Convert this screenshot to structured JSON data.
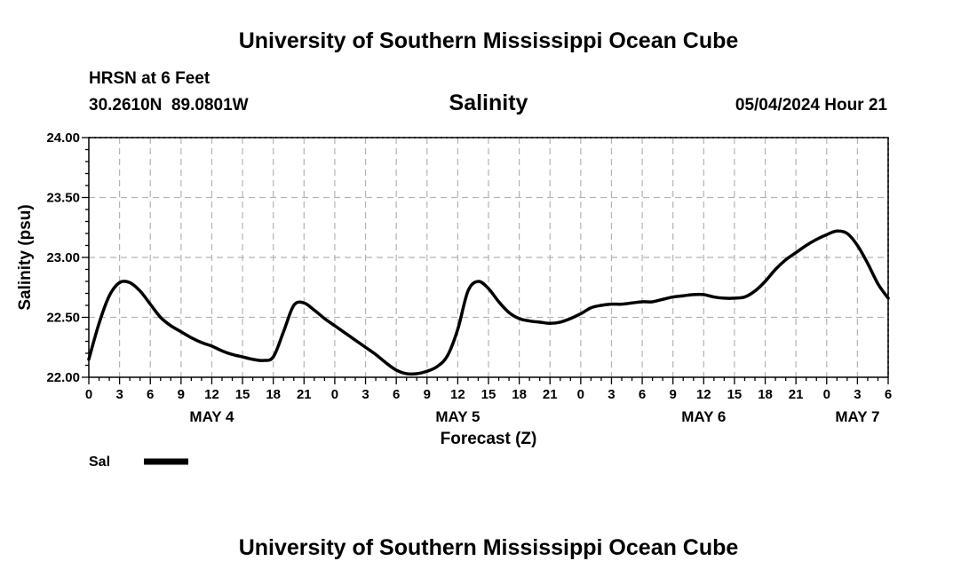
{
  "page": {
    "title_top": "University of Southern Mississippi Ocean Cube",
    "title_bottom": "University of Southern Mississippi Ocean Cube",
    "station": "HRSN at 6 Feet",
    "coords": "30.2610N  89.0801W",
    "timestamp": "05/04/2024 Hour 21"
  },
  "chart_data": {
    "type": "line",
    "title": "Salinity",
    "xlabel": "Forecast (Z)",
    "ylabel": "Salinity (psu)",
    "ylim": [
      22.0,
      24.0
    ],
    "yticks": [
      "24.00",
      "23.50",
      "23.00",
      "22.50",
      "22.00"
    ],
    "ytick_values": [
      24.0,
      23.5,
      23.0,
      22.5,
      22.0
    ],
    "xlim_hours": [
      0,
      78
    ],
    "xtick_labels": [
      "0",
      "3",
      "6",
      "9",
      "12",
      "15",
      "18",
      "21",
      "0",
      "3",
      "6",
      "9",
      "12",
      "15",
      "18",
      "21",
      "0",
      "3",
      "6",
      "9",
      "12",
      "15",
      "18",
      "21",
      "0",
      "3",
      "6"
    ],
    "day_labels": [
      {
        "label": "MAY 4",
        "hour": 12
      },
      {
        "label": "MAY 5",
        "hour": 36
      },
      {
        "label": "MAY 6",
        "hour": 60
      },
      {
        "label": "MAY 7",
        "hour": 75
      }
    ],
    "grid": true,
    "legend": {
      "label": "Sal",
      "placement": "bottom-left"
    },
    "series": [
      {
        "name": "Sal",
        "x_hours": [
          0,
          1,
          2,
          3,
          4,
          5,
          6,
          7,
          8,
          9,
          10,
          11,
          12,
          13,
          14,
          15,
          16,
          17,
          18,
          19,
          20,
          21,
          22,
          23,
          24,
          25,
          26,
          27,
          28,
          29,
          30,
          31,
          32,
          33,
          34,
          35,
          36,
          37,
          38,
          39,
          40,
          41,
          42,
          43,
          44,
          45,
          46,
          47,
          48,
          49,
          50,
          51,
          52,
          53,
          54,
          55,
          56,
          57,
          58,
          59,
          60,
          61,
          62,
          63,
          64,
          65,
          66,
          67,
          68,
          69,
          70,
          71,
          72,
          73,
          74,
          75,
          76,
          77,
          78
        ],
        "values": [
          22.15,
          22.45,
          22.68,
          22.79,
          22.79,
          22.72,
          22.61,
          22.5,
          22.43,
          22.38,
          22.33,
          22.29,
          22.26,
          22.22,
          22.19,
          22.17,
          22.15,
          22.14,
          22.17,
          22.38,
          22.6,
          22.62,
          22.56,
          22.49,
          22.43,
          22.37,
          22.31,
          22.25,
          22.19,
          22.12,
          22.06,
          22.03,
          22.03,
          22.05,
          22.09,
          22.18,
          22.4,
          22.72,
          22.8,
          22.74,
          22.63,
          22.54,
          22.49,
          22.47,
          22.46,
          22.45,
          22.46,
          22.49,
          22.53,
          22.58,
          22.6,
          22.61,
          22.61,
          22.62,
          22.63,
          22.63,
          22.65,
          22.67,
          22.68,
          22.69,
          22.69,
          22.67,
          22.66,
          22.66,
          22.67,
          22.72,
          22.8,
          22.9,
          22.98,
          23.04,
          23.1,
          23.15,
          23.19,
          23.22,
          23.2,
          23.1,
          22.95,
          22.78,
          22.66
        ]
      }
    ]
  }
}
